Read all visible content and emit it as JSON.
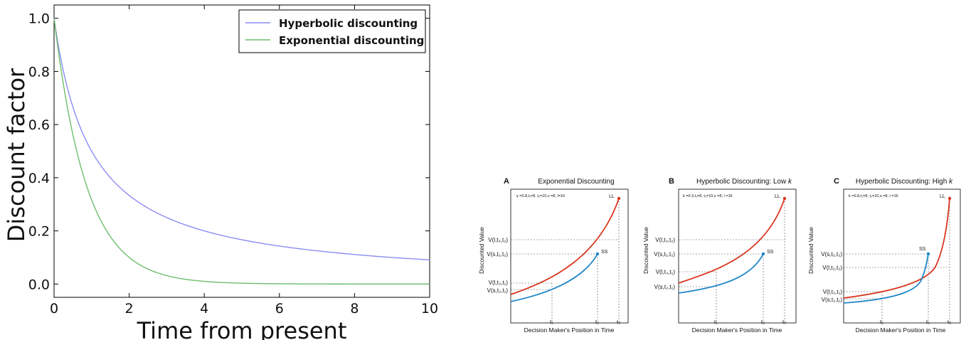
{
  "left_chart": {
    "xlabel": "Time from present",
    "ylabel": "Discount factor",
    "legend_position": "top-right",
    "colors": {
      "hyperbolic": "#8c8cf5",
      "exponential": "#6dbd6d"
    }
  },
  "panels": {
    "a": {
      "letter": "A",
      "title": "Exponential Discounting",
      "params": "γ =0.8,t₁=8, t₂=10,s =8, l=16"
    },
    "b": {
      "letter": "B",
      "title": "Hyperbolic Discounting: Low ",
      "title_k": "k",
      "params": "k =0.3,t₁=8, t₂=10,s =8, l =16"
    },
    "c": {
      "letter": "C",
      "title": "Hyperbolic Discounting: High ",
      "title_k": "k",
      "params": "k =0.8,t₁=8, t₂=10,s =8, l =16"
    },
    "ylabel": "Discounted Value",
    "xlabel": "Decision Maker's Position in Time",
    "ticks": {
      "t1": "t₁",
      "t2": "t₂",
      "t3": "t₃"
    },
    "point_labels": {
      "ll": "LL",
      "ss": "SS"
    },
    "v_labels": {
      "l_t2": "V(l,t₃,t₂)",
      "s_t2": "V(s,t₂,t₂)",
      "l_t1": "V(l,t₃,t₁)",
      "s_t1": "V(s,t₂,t₁)"
    },
    "colors": {
      "ll": "#d8351e",
      "ss": "#1f86c8",
      "guide": "#555555"
    }
  },
  "chart_data": [
    {
      "type": "line",
      "title": "",
      "xlabel": "Time from present",
      "ylabel": "Discount factor",
      "xlim": [
        0,
        10
      ],
      "ylim": [
        -0.05,
        1.05
      ],
      "x_ticks": [
        0,
        2,
        4,
        6,
        8,
        10
      ],
      "y_ticks": [
        0.0,
        0.2,
        0.4,
        0.6,
        0.8,
        1.0
      ],
      "x": [
        0,
        0.5,
        1,
        1.5,
        2,
        2.5,
        3,
        3.5,
        4,
        5,
        6,
        7,
        8,
        9,
        10
      ],
      "series": [
        {
          "name": "Hyperbolic discounting",
          "values": [
            1.0,
            0.67,
            0.5,
            0.4,
            0.333,
            0.286,
            0.25,
            0.222,
            0.2,
            0.167,
            0.143,
            0.125,
            0.111,
            0.1,
            0.091
          ]
        },
        {
          "name": "Exponential discounting",
          "values": [
            1.0,
            0.55,
            0.3,
            0.17,
            0.09,
            0.05,
            0.03,
            0.018,
            0.01,
            0.004,
            0.002,
            0.001,
            0.0,
            0.0,
            0.0
          ]
        }
      ],
      "legend": "top-right",
      "grid": false
    }
  ]
}
